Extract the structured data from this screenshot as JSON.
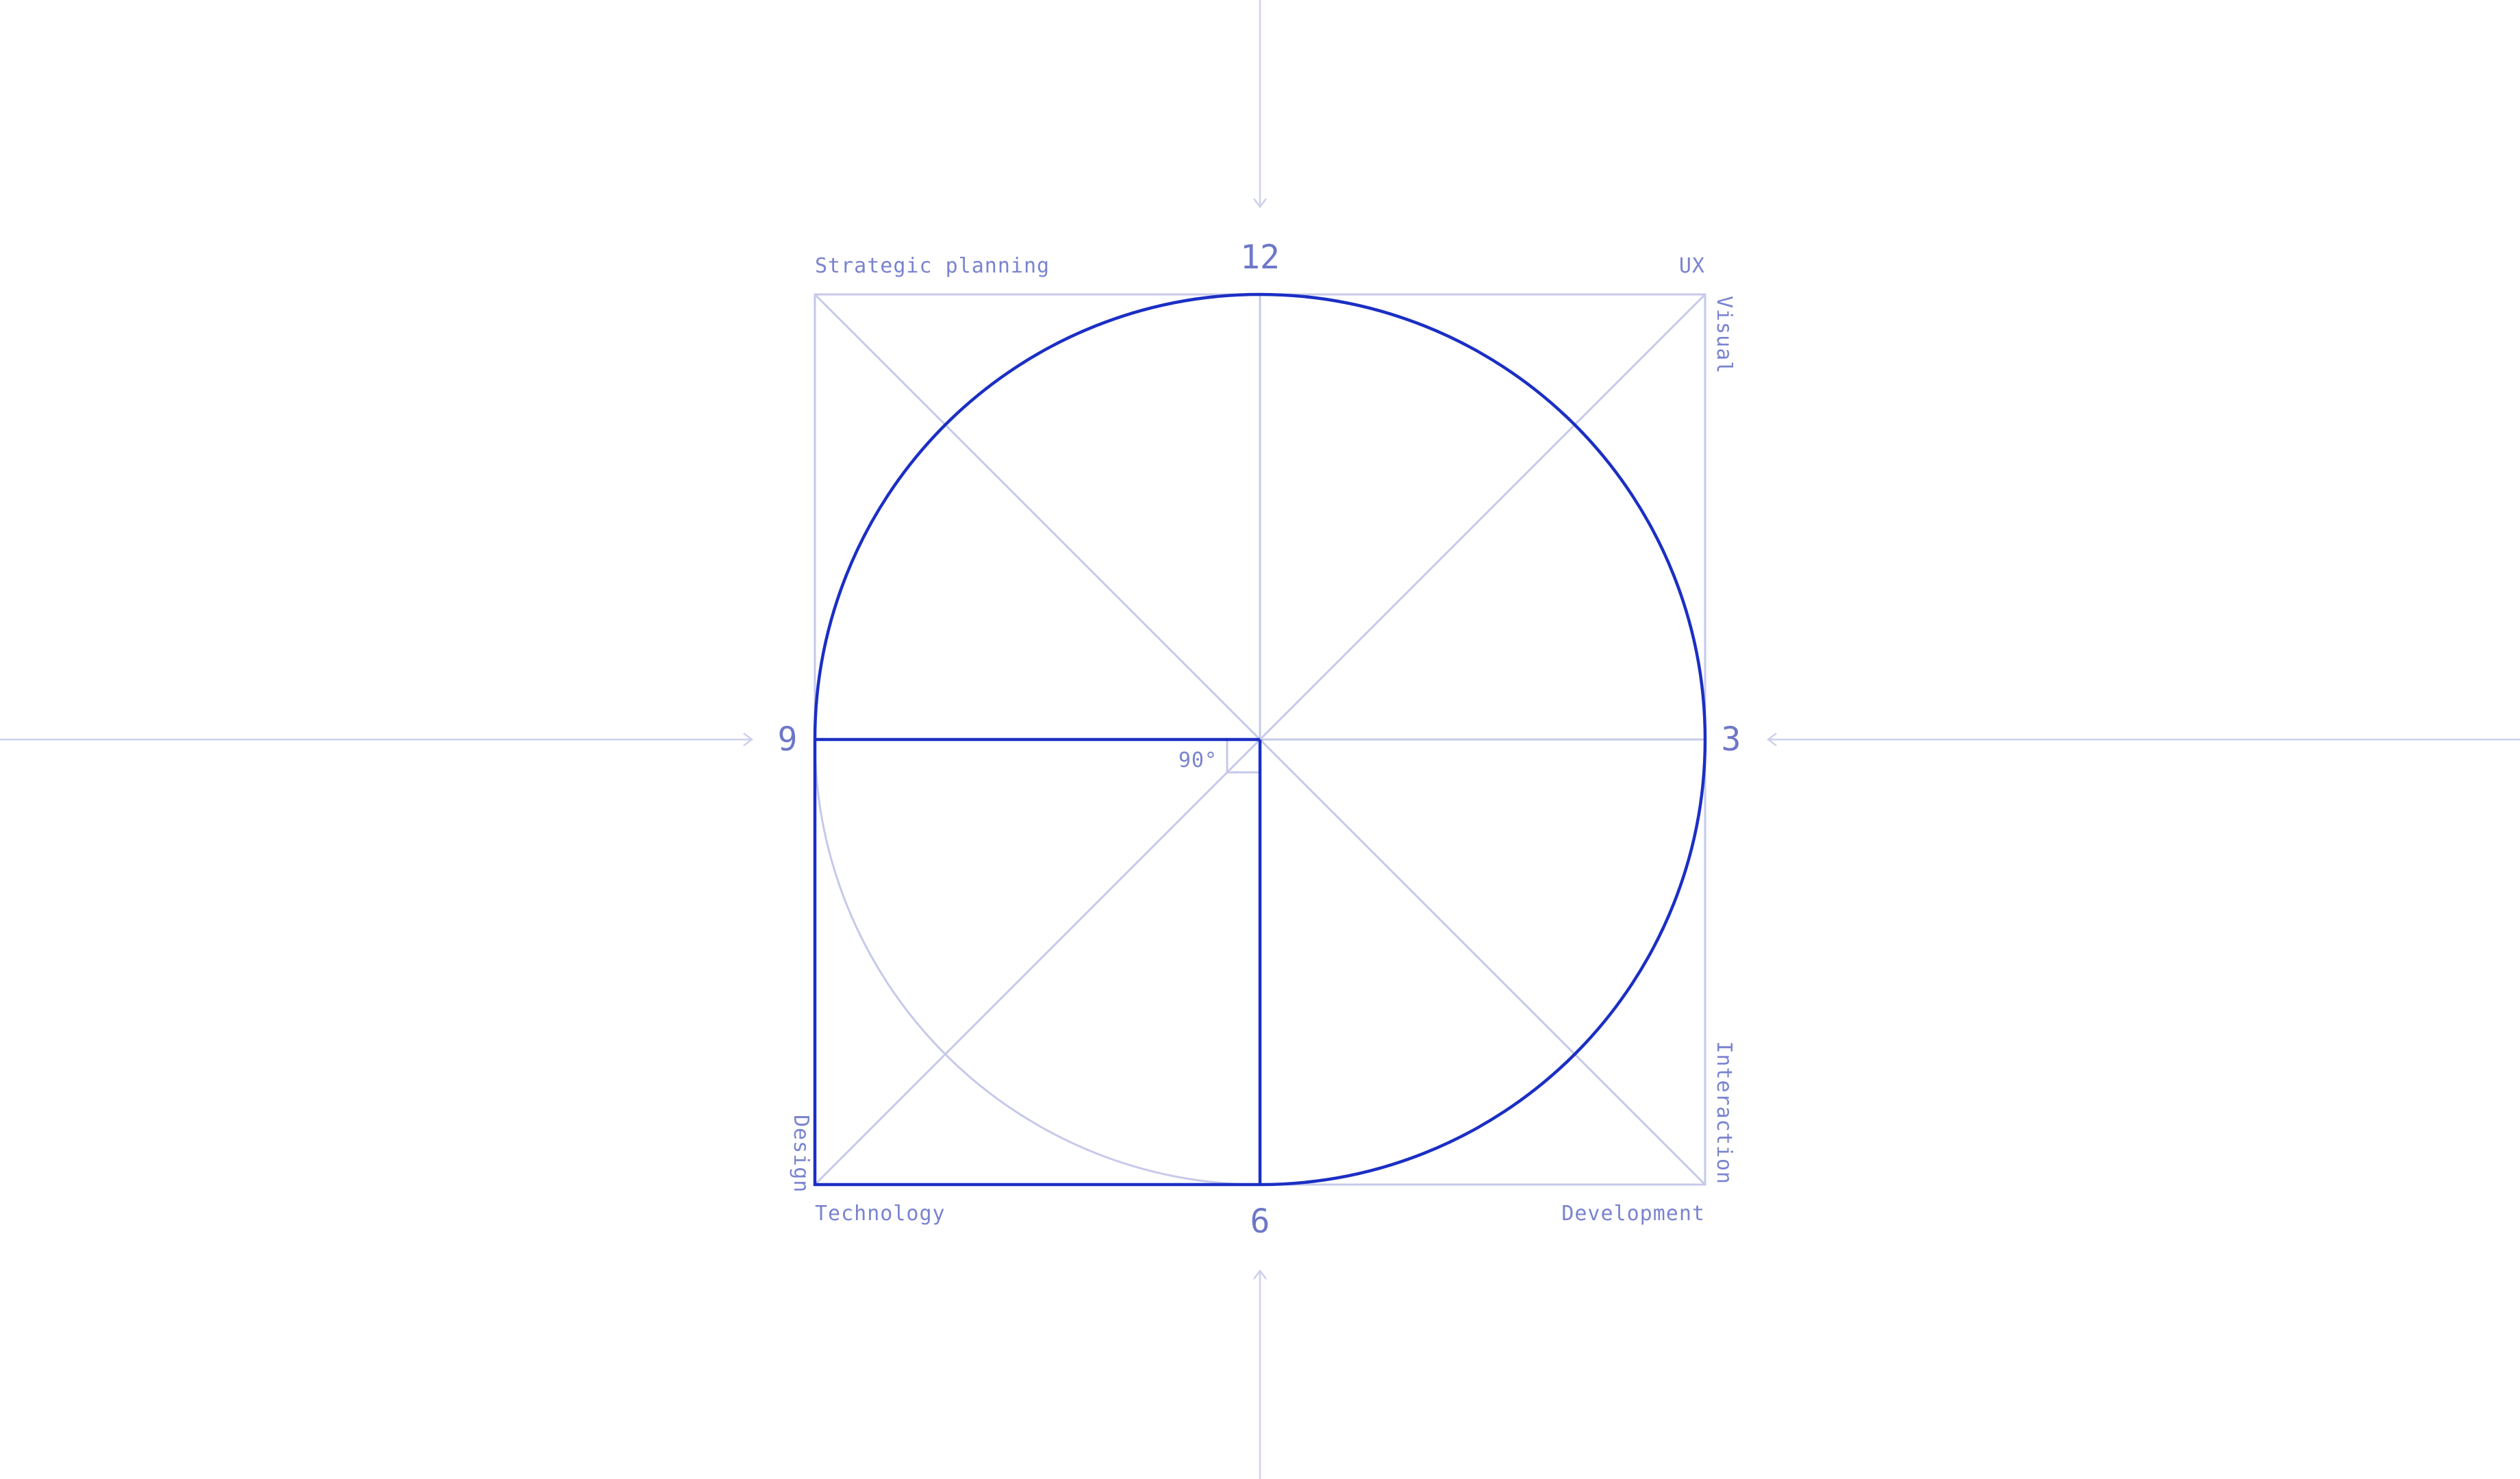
{
  "diagram": {
    "clock_numbers": {
      "top": "12",
      "right": "3",
      "bottom": "6",
      "left": "9"
    },
    "corner_labels": {
      "top_left": "Strategic planning",
      "top_right": "UX",
      "bottom_left": "Technology",
      "bottom_right": "Development"
    },
    "side_labels": {
      "right_top": "Visual",
      "right_bottom": "Interaction",
      "left_bottom": "Design"
    },
    "angle_label": "90°",
    "colors": {
      "accent": "#1b2fc4",
      "guide": "#cdd0ec",
      "text": "#7a83d0"
    }
  }
}
